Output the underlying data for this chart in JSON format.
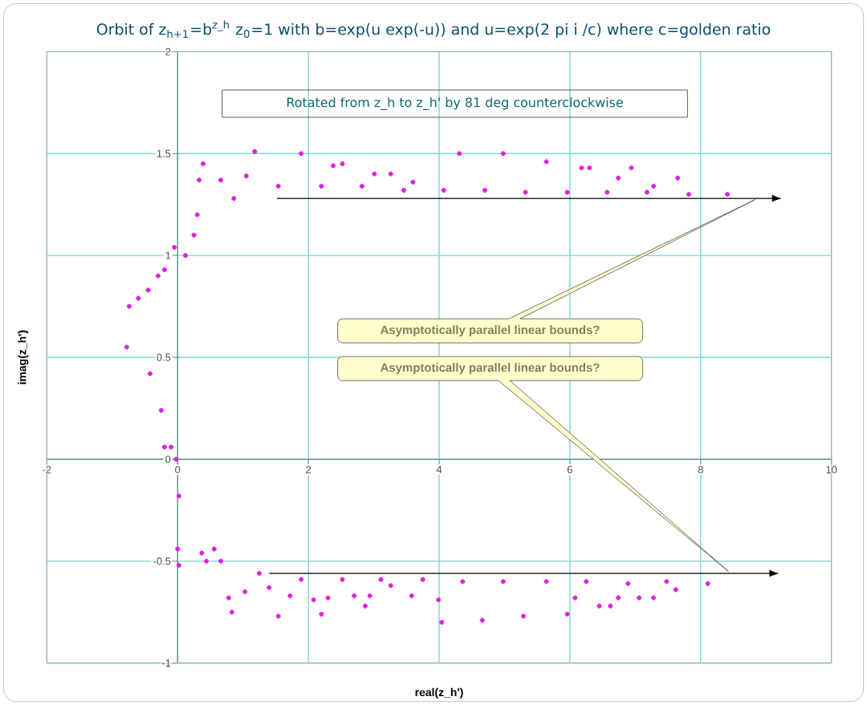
{
  "chart_data": {
    "type": "scatter",
    "title": "Orbit of z$_{h+1}$=b$^{z_h}$  z$_{0}$=1 with b=exp(u exp(-u)) and u=exp(2 pi i /c) where c=golden ratio",
    "xlabel": "real(z_h')",
    "ylabel": "imag(z_h')",
    "xlim": [
      -2,
      10
    ],
    "ylim": [
      -1,
      2
    ],
    "xticks": [
      -2,
      0,
      2,
      4,
      6,
      8,
      10
    ],
    "yticks": [
      -1,
      -0.5,
      0,
      0.5,
      1,
      1.5,
      2
    ],
    "grid": true,
    "annotations": [
      "Rotated from z_h to z_h' by 81 deg counterclockwise",
      "Asymptotically parallel linear bounds?",
      "Asymptotically parallel linear bounds?"
    ],
    "series": [
      {
        "color": "#dd22dd",
        "x": [
          -0.74,
          -0.6,
          -0.45,
          -0.3,
          -0.2,
          -0.05,
          0.12,
          0.25,
          0.3,
          0.33,
          0.39,
          0.66,
          0.86,
          1.05,
          1.18,
          1.54,
          1.89,
          2.2,
          2.38,
          2.52,
          2.82,
          3.01,
          3.26,
          3.46,
          3.6,
          4.07,
          4.31,
          4.7,
          4.98,
          5.32,
          5.64,
          5.96,
          6.18,
          6.3,
          6.57,
          6.74,
          6.94,
          7.18,
          7.28,
          7.65,
          7.82,
          8.41,
          -0.78,
          -0.42,
          -0.25,
          -0.2,
          -0.1,
          -0.02,
          0.02,
          0,
          0.02,
          0.37,
          0.44,
          0.56,
          0.66,
          0.78,
          0.83,
          1.03,
          1.25,
          1.4,
          1.54,
          1.72,
          1.89,
          2.08,
          2.2,
          2.3,
          2.52,
          2.7,
          2.87,
          2.94,
          3.11,
          3.26,
          3.58,
          3.75,
          3.99,
          4.04,
          4.36,
          4.66,
          4.98,
          5.29,
          5.64,
          5.96,
          6.08,
          6.25,
          6.45,
          6.62,
          6.74,
          6.89,
          7.06,
          7.28,
          7.48,
          7.62,
          8.11
        ],
        "values": [
          0.75,
          0.79,
          0.83,
          0.9,
          0.93,
          1.04,
          1.0,
          1.1,
          1.2,
          1.37,
          1.45,
          1.37,
          1.28,
          1.39,
          1.51,
          1.34,
          1.5,
          1.34,
          1.44,
          1.45,
          1.34,
          1.4,
          1.4,
          1.32,
          1.36,
          1.32,
          1.5,
          1.32,
          1.5,
          1.31,
          1.46,
          1.31,
          1.43,
          1.43,
          1.31,
          1.38,
          1.43,
          1.31,
          1.34,
          1.38,
          1.3,
          1.3,
          0.55,
          0.42,
          0.24,
          0.06,
          0.06,
          0,
          -0.18,
          -0.44,
          -0.52,
          -0.46,
          -0.5,
          -0.44,
          -0.5,
          -0.68,
          -0.75,
          -0.65,
          -0.56,
          -0.63,
          -0.77,
          -0.67,
          -0.59,
          -0.69,
          -0.76,
          -0.68,
          -0.59,
          -0.67,
          -0.72,
          -0.67,
          -0.59,
          -0.62,
          -0.67,
          -0.59,
          -0.69,
          -0.8,
          -0.6,
          -0.79,
          -0.6,
          -0.77,
          -0.6,
          -0.76,
          -0.68,
          -0.6,
          -0.72,
          -0.72,
          -0.68,
          -0.61,
          -0.68,
          -0.68,
          -0.6,
          -0.64,
          -0.61
        ]
      }
    ]
  }
}
